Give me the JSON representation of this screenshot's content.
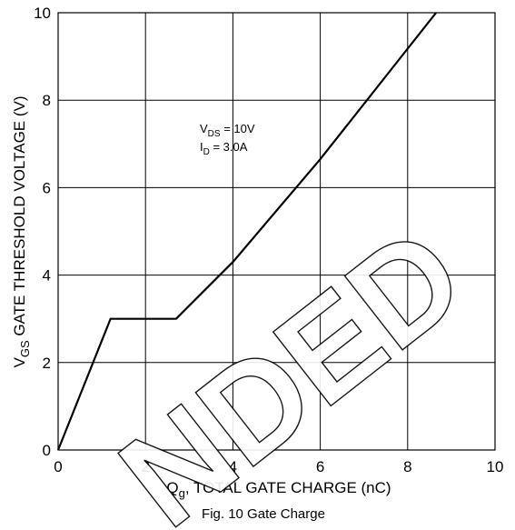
{
  "chart_data": {
    "type": "line",
    "x": [
      0,
      1.2,
      2.7,
      4.0,
      6.0,
      8.65
    ],
    "series": [
      {
        "values": [
          0,
          3.0,
          3.0,
          4.3,
          6.65,
          10.0
        ]
      }
    ],
    "xlabel": {
      "var": "Q",
      "sub": "g",
      "text": ", TOTAL GATE CHARGE (nC)"
    },
    "ylabel": {
      "var": "V",
      "sub": "GS",
      "text": " GATE THRESHOLD VOLTAGE (V)"
    },
    "xlim": [
      0,
      10
    ],
    "ylim": [
      0,
      10
    ],
    "xticks": [
      "0",
      "2",
      "4",
      "6",
      "8",
      "10"
    ],
    "yticks": [
      "0",
      "2",
      "4",
      "6",
      "8",
      "10"
    ],
    "grid": true,
    "annotations": {
      "vds": {
        "var": "V",
        "sub": "DS",
        "text": " = 10V"
      },
      "id": {
        "var": "I",
        "sub": "D",
        "text": " = 3.0A"
      }
    },
    "caption": "Fig. 10 Gate Charge",
    "colors": {
      "line": "#000000",
      "grid": "#000000"
    }
  },
  "watermark": "NDED"
}
